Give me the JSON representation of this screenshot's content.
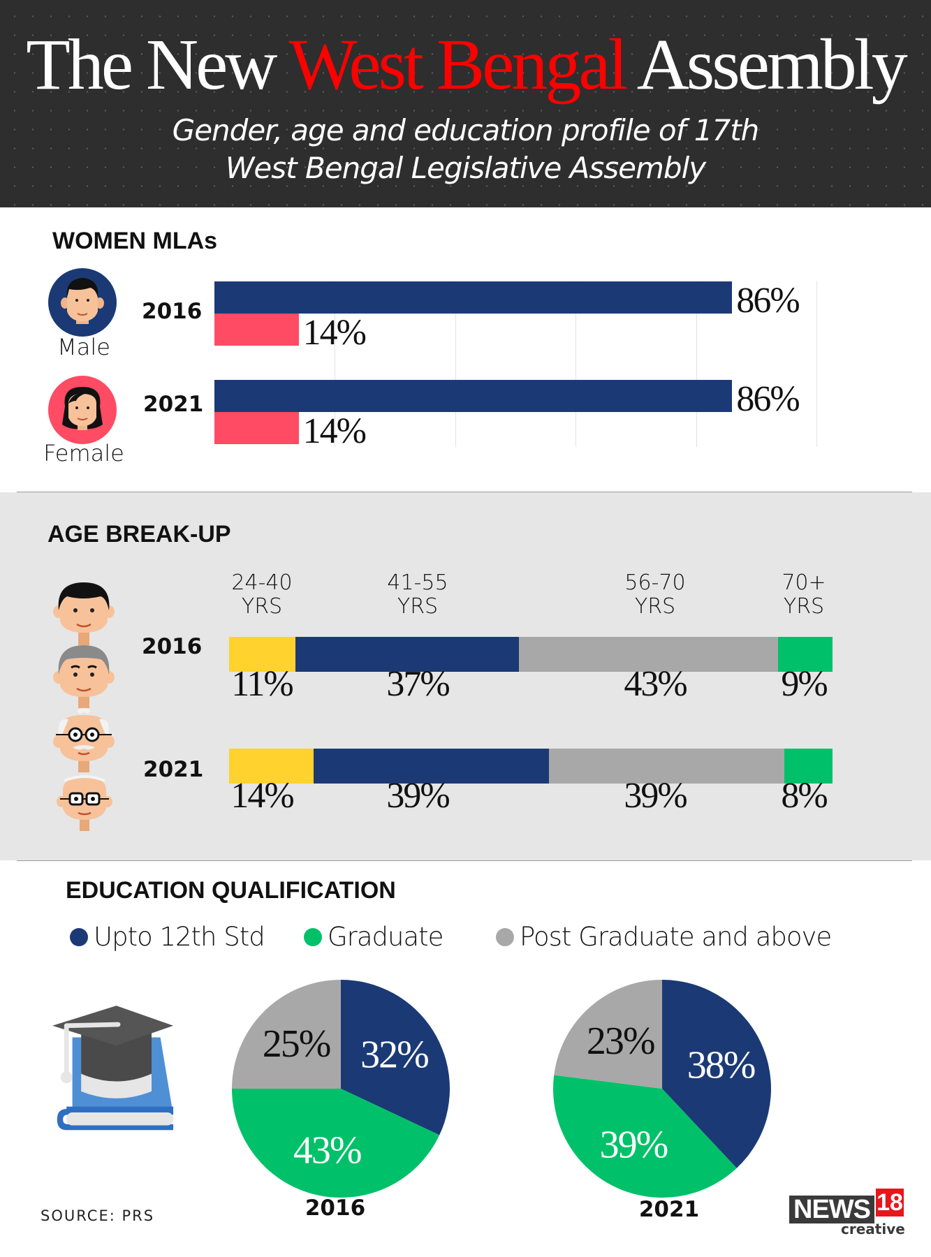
{
  "header": {
    "title_part1": "The New",
    "title_highlight": "West Bengal",
    "title_part2": "Assembly",
    "subtitle_line1": "Gender, age and education profile of 17th",
    "subtitle_line2": "West Bengal Legislative Assembly"
  },
  "colors": {
    "navy": "#1b3a75",
    "pink": "#ff4b63",
    "yellow": "#ffd22d",
    "gray": "#a8a8a8",
    "green": "#00c169",
    "title_red": "#ff0000",
    "header_bg": "#2e2e2e",
    "age_bg": "#e6e6e6"
  },
  "women_mlas": {
    "section_title": "WOMEN MLAs",
    "legend": [
      {
        "label": "Male",
        "icon": "male-avatar-icon",
        "color": "#1b3a75"
      },
      {
        "label": "Female",
        "icon": "female-avatar-icon",
        "color": "#ff4b63"
      }
    ]
  },
  "age": {
    "section_title": "AGE BREAK-UP",
    "groups": [
      {
        "range": "24-40",
        "unit": "YRS"
      },
      {
        "range": "41-55",
        "unit": "YRS"
      },
      {
        "range": "56-70",
        "unit": "YRS"
      },
      {
        "range": "70+",
        "unit": "YRS"
      }
    ]
  },
  "education": {
    "section_title": "EDUCATION QUALIFICATION",
    "legend": [
      {
        "label": "Upto 12th Std",
        "color": "#1b3a75"
      },
      {
        "label": "Graduate",
        "color": "#00c169"
      },
      {
        "label": "Post Graduate and above",
        "color": "#a8a8a8"
      }
    ],
    "icon": "graduation-cap-book-icon"
  },
  "footer": {
    "source": "SOURCE: PRS",
    "logo_news": "NEWS",
    "logo_number": "18",
    "logo_sub": "creative"
  },
  "chart_data": [
    {
      "type": "bar",
      "title": "WOMEN MLAs",
      "orientation": "horizontal",
      "categories": [
        "2016",
        "2021"
      ],
      "series": [
        {
          "name": "Male",
          "values": [
            86,
            86
          ],
          "labels": [
            "86%",
            "86%"
          ]
        },
        {
          "name": "Female",
          "values": [
            14,
            14
          ],
          "labels": [
            "14%",
            "14%"
          ]
        }
      ],
      "xlim": [
        0,
        100
      ],
      "grid": true,
      "unit": "%"
    },
    {
      "type": "bar",
      "stacked": true,
      "title": "AGE BREAK-UP",
      "orientation": "horizontal",
      "categories": [
        "2016",
        "2021"
      ],
      "series": [
        {
          "name": "24-40 YRS",
          "values": [
            11,
            14
          ],
          "labels": [
            "11%",
            "14%"
          ]
        },
        {
          "name": "41-55 YRS",
          "values": [
            37,
            39
          ],
          "labels": [
            "37%",
            "39%"
          ]
        },
        {
          "name": "56-70 YRS",
          "values": [
            43,
            39
          ],
          "labels": [
            "43%",
            "39%"
          ]
        },
        {
          "name": "70+ YRS",
          "values": [
            9,
            8
          ],
          "labels": [
            "9%",
            "8%"
          ]
        }
      ],
      "unit": "%"
    },
    {
      "type": "pie",
      "title": "2016",
      "slices": [
        {
          "label": "Upto 12th Std",
          "value": 32,
          "text": "32%"
        },
        {
          "label": "Graduate",
          "value": 43,
          "text": "43%"
        },
        {
          "label": "Post Graduate and above",
          "value": 25,
          "text": "25%"
        }
      ]
    },
    {
      "type": "pie",
      "title": "2021",
      "slices": [
        {
          "label": "Upto 12th Std",
          "value": 38,
          "text": "38%"
        },
        {
          "label": "Graduate",
          "value": 39,
          "text": "39%"
        },
        {
          "label": "Post Graduate and above",
          "value": 23,
          "text": "23%"
        }
      ]
    }
  ]
}
